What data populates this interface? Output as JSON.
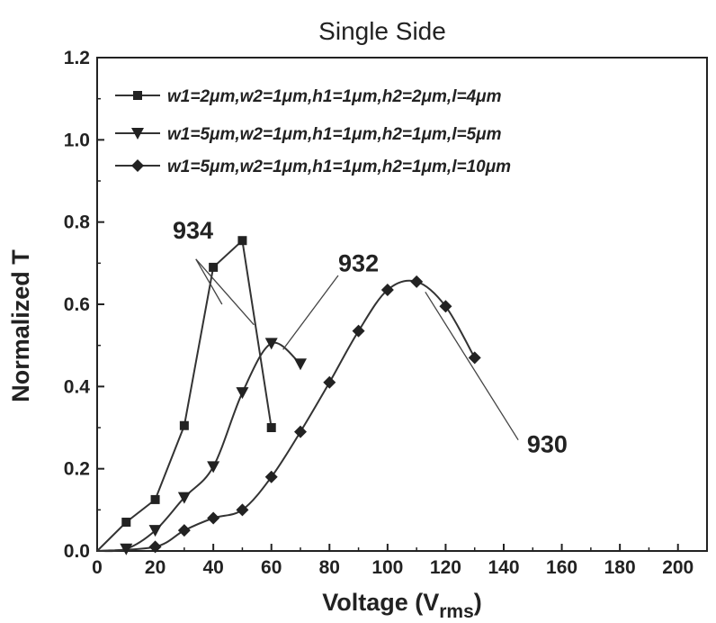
{
  "chart_data": {
    "type": "line",
    "title": "Single Side",
    "xlabel": "Voltage (V",
    "xlabel_sub": "rms",
    "xlabel_close": ")",
    "ylabel": "Normalized T",
    "xlim": [
      0,
      210
    ],
    "ylim": [
      0,
      1.2
    ],
    "xticks": [
      0,
      20,
      40,
      60,
      80,
      100,
      120,
      140,
      160,
      180,
      200
    ],
    "yticks": [
      0.0,
      0.2,
      0.4,
      0.6,
      0.8,
      1.0,
      1.2
    ],
    "xtick_labels": [
      "0",
      "20",
      "40",
      "60",
      "80",
      "100",
      "120",
      "140",
      "160",
      "180",
      "200"
    ],
    "ytick_labels": [
      "0.0",
      "0.2",
      "0.4",
      "0.6",
      "0.8",
      "1.0",
      "1.2"
    ],
    "legend_position": "top",
    "grid": false,
    "series": [
      {
        "name": "w1=2μm,w2=1μm,h1=1μm,h2=2μm,l=4μm",
        "marker": "square",
        "line": "straight",
        "x": [
          0,
          10,
          20,
          30,
          40,
          50,
          60
        ],
        "y": [
          0.0,
          0.07,
          0.125,
          0.305,
          0.69,
          0.755,
          0.3
        ]
      },
      {
        "name": "w1=5μm,w2=1μm,h1=1μm,h2=1μm,l=5μm",
        "marker": "triangle-down",
        "line": "smooth",
        "x": [
          10,
          20,
          30,
          40,
          50,
          60,
          70
        ],
        "y": [
          0.005,
          0.05,
          0.13,
          0.205,
          0.385,
          0.505,
          0.455
        ]
      },
      {
        "name": "w1=5μm,w2=1μm,h1=1μm,h2=1μm,l=10μm",
        "marker": "diamond",
        "line": "smooth",
        "x": [
          20,
          30,
          40,
          50,
          60,
          70,
          80,
          90,
          100,
          110,
          120,
          130
        ],
        "y": [
          0.01,
          0.05,
          0.08,
          0.1,
          0.18,
          0.29,
          0.41,
          0.535,
          0.635,
          0.655,
          0.595,
          0.47
        ]
      }
    ],
    "annotations": [
      {
        "text": "934",
        "text_x": 33,
        "text_y": 0.76,
        "target_x": 42,
        "target_y": 0.64
      },
      {
        "text": "932",
        "text_x": 90,
        "text_y": 0.68,
        "target_x": 64,
        "target_y": 0.49
      },
      {
        "text": "930",
        "text_x": 155,
        "text_y": 0.24,
        "target_x": 113,
        "target_y": 0.64
      }
    ]
  }
}
